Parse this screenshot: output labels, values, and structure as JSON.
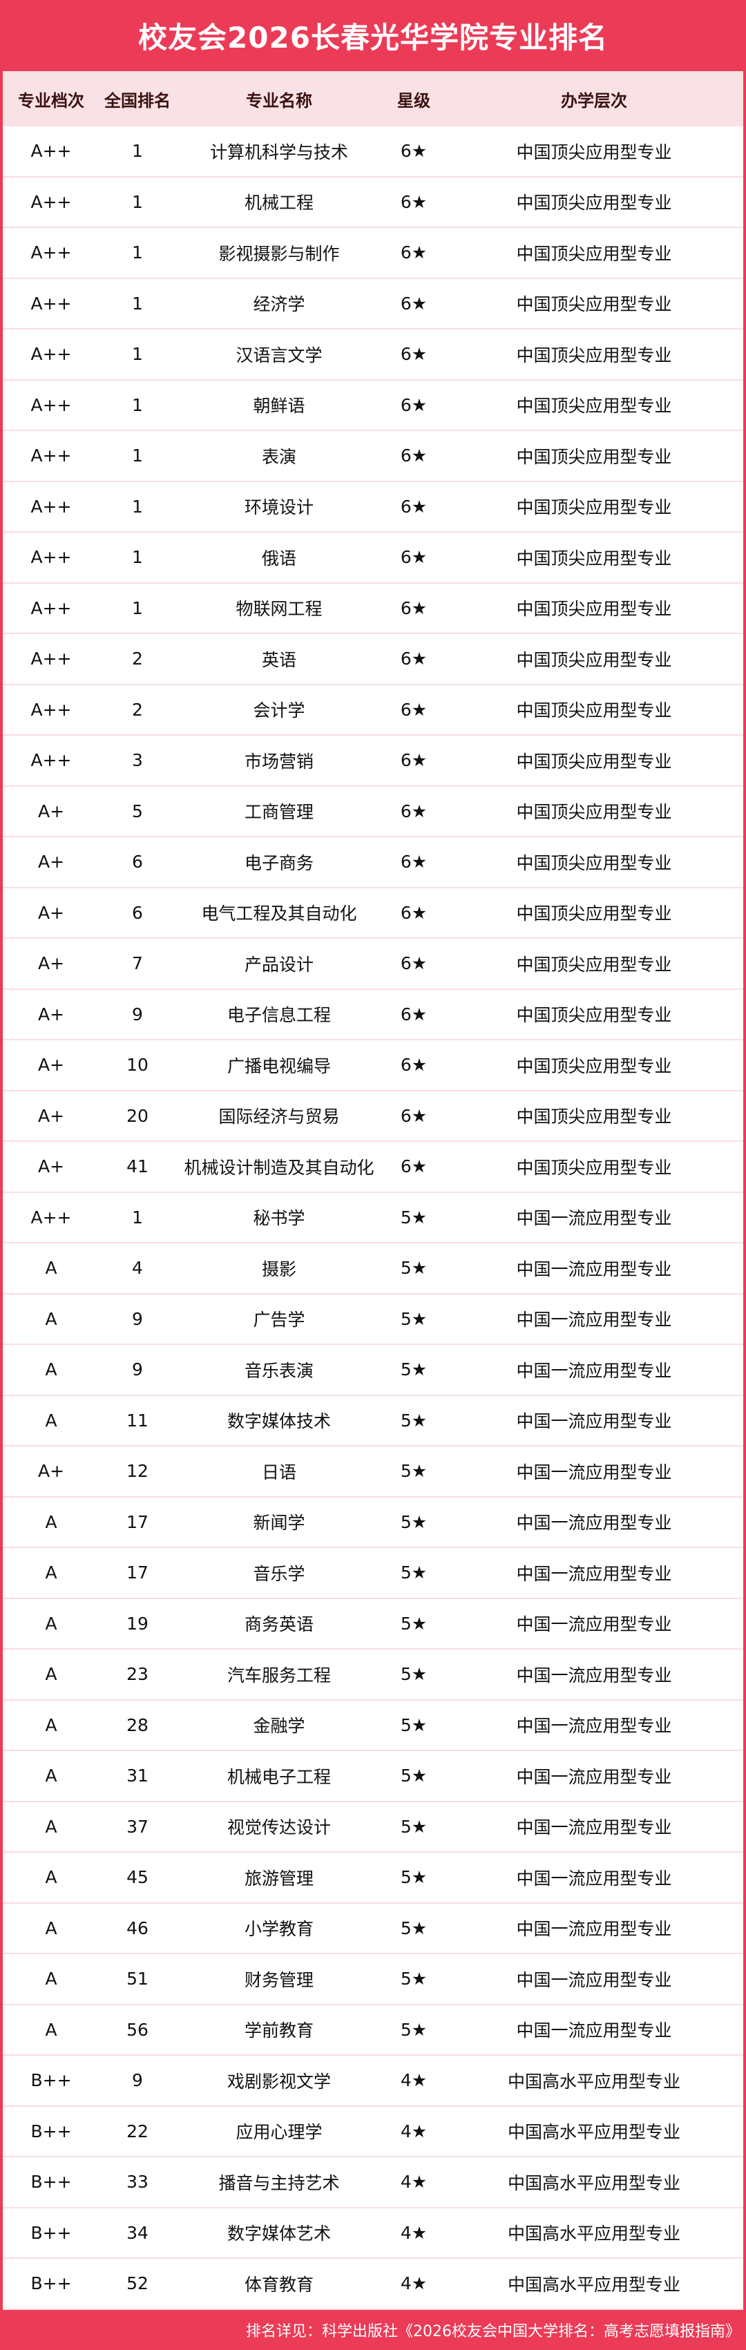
{
  "title": "校友会2026长春光华学院专业排名",
  "colors": {
    "accent": "#EB3B57",
    "header_bg": "#F9E2E5",
    "row_divider": "#FBDDE2"
  },
  "columns": [
    "专业档次",
    "全国排名",
    "专业名称",
    "星级",
    "办学层次"
  ],
  "rows": [
    [
      "A++",
      "1",
      "计算机科学与技术",
      "6★",
      "中国顶尖应用型专业"
    ],
    [
      "A++",
      "1",
      "机械工程",
      "6★",
      "中国顶尖应用型专业"
    ],
    [
      "A++",
      "1",
      "影视摄影与制作",
      "6★",
      "中国顶尖应用型专业"
    ],
    [
      "A++",
      "1",
      "经济学",
      "6★",
      "中国顶尖应用型专业"
    ],
    [
      "A++",
      "1",
      "汉语言文学",
      "6★",
      "中国顶尖应用型专业"
    ],
    [
      "A++",
      "1",
      "朝鲜语",
      "6★",
      "中国顶尖应用型专业"
    ],
    [
      "A++",
      "1",
      "表演",
      "6★",
      "中国顶尖应用型专业"
    ],
    [
      "A++",
      "1",
      "环境设计",
      "6★",
      "中国顶尖应用型专业"
    ],
    [
      "A++",
      "1",
      "俄语",
      "6★",
      "中国顶尖应用型专业"
    ],
    [
      "A++",
      "1",
      "物联网工程",
      "6★",
      "中国顶尖应用型专业"
    ],
    [
      "A++",
      "2",
      "英语",
      "6★",
      "中国顶尖应用型专业"
    ],
    [
      "A++",
      "2",
      "会计学",
      "6★",
      "中国顶尖应用型专业"
    ],
    [
      "A++",
      "3",
      "市场营销",
      "6★",
      "中国顶尖应用型专业"
    ],
    [
      "A+",
      "5",
      "工商管理",
      "6★",
      "中国顶尖应用型专业"
    ],
    [
      "A+",
      "6",
      "电子商务",
      "6★",
      "中国顶尖应用型专业"
    ],
    [
      "A+",
      "6",
      "电气工程及其自动化",
      "6★",
      "中国顶尖应用型专业"
    ],
    [
      "A+",
      "7",
      "产品设计",
      "6★",
      "中国顶尖应用型专业"
    ],
    [
      "A+",
      "9",
      "电子信息工程",
      "6★",
      "中国顶尖应用型专业"
    ],
    [
      "A+",
      "10",
      "广播电视编导",
      "6★",
      "中国顶尖应用型专业"
    ],
    [
      "A+",
      "20",
      "国际经济与贸易",
      "6★",
      "中国顶尖应用型专业"
    ],
    [
      "A+",
      "41",
      "机械设计制造及其自动化",
      "6★",
      "中国顶尖应用型专业"
    ],
    [
      "A++",
      "1",
      "秘书学",
      "5★",
      "中国一流应用型专业"
    ],
    [
      "A",
      "4",
      "摄影",
      "5★",
      "中国一流应用型专业"
    ],
    [
      "A",
      "9",
      "广告学",
      "5★",
      "中国一流应用型专业"
    ],
    [
      "A",
      "9",
      "音乐表演",
      "5★",
      "中国一流应用型专业"
    ],
    [
      "A",
      "11",
      "数字媒体技术",
      "5★",
      "中国一流应用型专业"
    ],
    [
      "A+",
      "12",
      "日语",
      "5★",
      "中国一流应用型专业"
    ],
    [
      "A",
      "17",
      "新闻学",
      "5★",
      "中国一流应用型专业"
    ],
    [
      "A",
      "17",
      "音乐学",
      "5★",
      "中国一流应用型专业"
    ],
    [
      "A",
      "19",
      "商务英语",
      "5★",
      "中国一流应用型专业"
    ],
    [
      "A",
      "23",
      "汽车服务工程",
      "5★",
      "中国一流应用型专业"
    ],
    [
      "A",
      "28",
      "金融学",
      "5★",
      "中国一流应用型专业"
    ],
    [
      "A",
      "31",
      "机械电子工程",
      "5★",
      "中国一流应用型专业"
    ],
    [
      "A",
      "37",
      "视觉传达设计",
      "5★",
      "中国一流应用型专业"
    ],
    [
      "A",
      "45",
      "旅游管理",
      "5★",
      "中国一流应用型专业"
    ],
    [
      "A",
      "46",
      "小学教育",
      "5★",
      "中国一流应用型专业"
    ],
    [
      "A",
      "51",
      "财务管理",
      "5★",
      "中国一流应用型专业"
    ],
    [
      "A",
      "56",
      "学前教育",
      "5★",
      "中国一流应用型专业"
    ],
    [
      "B++",
      "9",
      "戏剧影视文学",
      "4★",
      "中国高水平应用型专业"
    ],
    [
      "B++",
      "22",
      "应用心理学",
      "4★",
      "中国高水平应用型专业"
    ],
    [
      "B++",
      "33",
      "播音与主持艺术",
      "4★",
      "中国高水平应用型专业"
    ],
    [
      "B++",
      "34",
      "数字媒体艺术",
      "4★",
      "中国高水平应用型专业"
    ],
    [
      "B++",
      "52",
      "体育教育",
      "4★",
      "中国高水平应用型专业"
    ]
  ],
  "footer": "排名详见：科学出版社《2026校友会中国大学排名：高考志愿填报指南》"
}
